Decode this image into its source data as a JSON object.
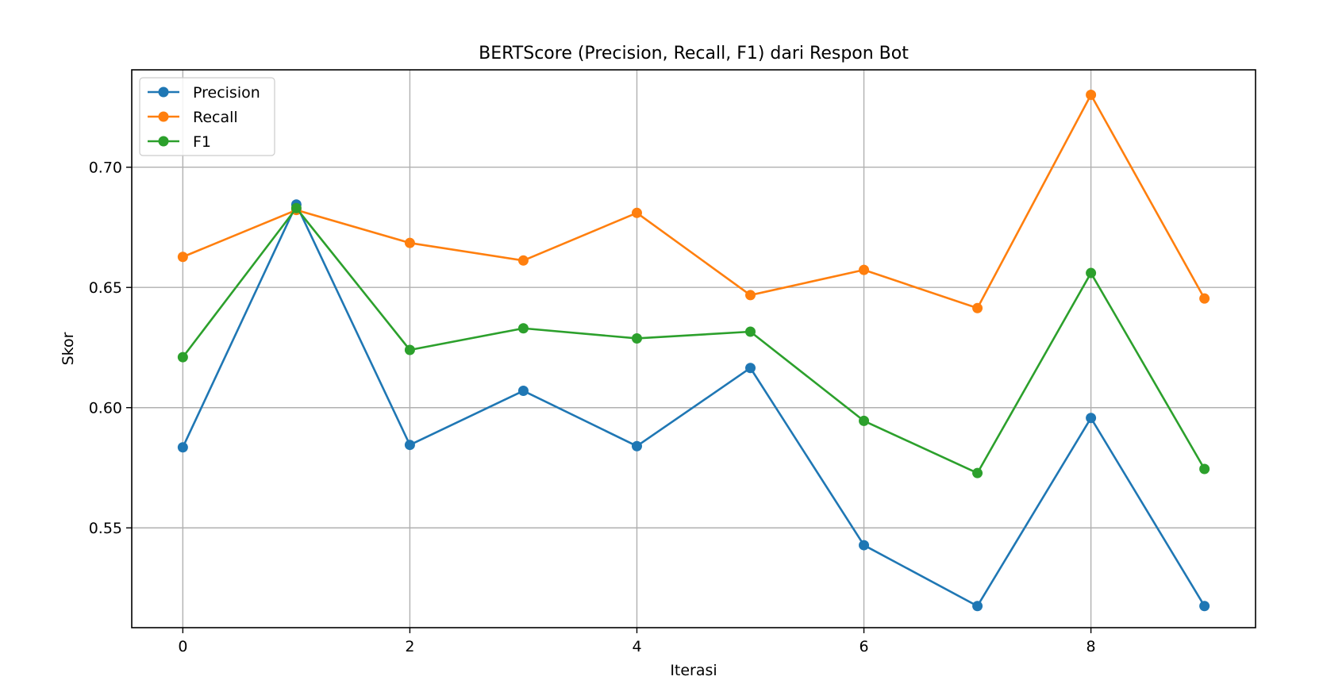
{
  "chart_data": {
    "type": "line",
    "title": "BERTScore (Precision, Recall, F1) dari Respon Bot",
    "xlabel": "Iterasi",
    "ylabel": "Skor",
    "x": [
      0,
      1,
      2,
      3,
      4,
      5,
      6,
      7,
      8,
      9
    ],
    "xticks": [
      0,
      2,
      4,
      6,
      8
    ],
    "xtick_labels": [
      "0",
      "2",
      "4",
      "6",
      "8"
    ],
    "yticks": [
      0.55,
      0.6,
      0.65,
      0.7
    ],
    "ytick_labels": [
      "0.55",
      "0.60",
      "0.65",
      "0.70"
    ],
    "xlim": [
      -0.45,
      9.45
    ],
    "ylim": [
      0.5085,
      0.7405
    ],
    "grid": true,
    "legend_position": "upper-left",
    "series": [
      {
        "name": "Precision",
        "color": "#1f77b4",
        "values": [
          0.5835,
          0.6845,
          0.5845,
          0.607,
          0.584,
          0.6165,
          0.5428,
          0.5175,
          0.5957,
          0.5175
        ]
      },
      {
        "name": "Recall",
        "color": "#ff7f0e",
        "values": [
          0.6627,
          0.6822,
          0.6685,
          0.6612,
          0.681,
          0.6468,
          0.6573,
          0.6414,
          0.7301,
          0.6454
        ]
      },
      {
        "name": "F1",
        "color": "#2ca02c",
        "values": [
          0.621,
          0.683,
          0.624,
          0.633,
          0.6288,
          0.6316,
          0.5945,
          0.5728,
          0.656,
          0.5745
        ]
      }
    ]
  }
}
